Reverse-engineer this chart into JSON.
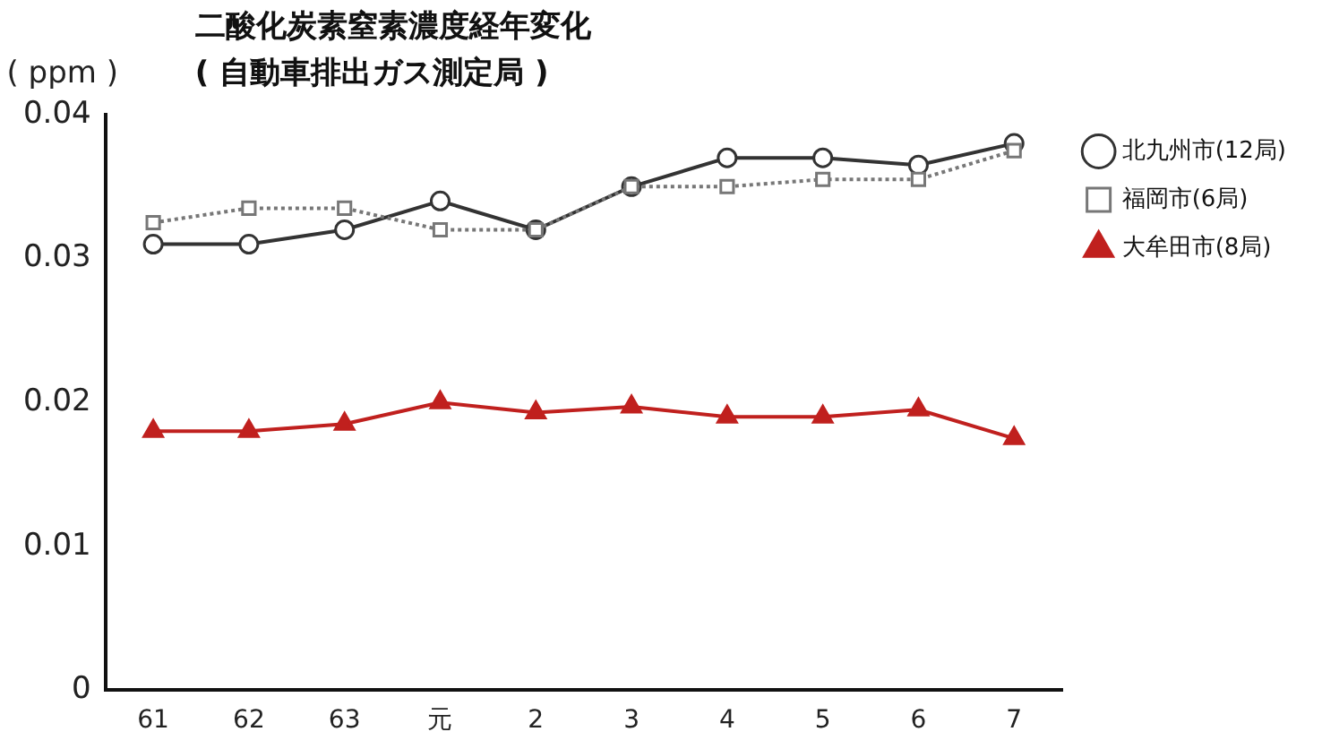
{
  "chart_data": {
    "type": "line",
    "title": "二酸化炭素窒素濃度経年変化",
    "subtitle": "( 自動車排出ガス測定局 )",
    "ylabel": "( ppm )",
    "categories": [
      "61",
      "62",
      "63",
      "元",
      "2",
      "3",
      "4",
      "5",
      "6",
      "7"
    ],
    "series": [
      {
        "name": "北九州市(12局)",
        "color": "#333333",
        "marker": "circle",
        "line_style": "solid",
        "values": [
          0.031,
          0.031,
          0.032,
          0.034,
          0.032,
          0.035,
          0.037,
          0.037,
          0.0365,
          0.038
        ]
      },
      {
        "name": "福岡市(6局)",
        "color": "#777777",
        "marker": "square",
        "line_style": "dotted",
        "values": [
          0.0325,
          0.0335,
          0.0335,
          0.032,
          0.032,
          0.035,
          0.035,
          0.0355,
          0.0355,
          0.0375
        ]
      },
      {
        "name": "大牟田市(8局)",
        "color": "#c0201e",
        "marker": "triangle",
        "line_style": "solid",
        "values": [
          0.018,
          0.018,
          0.0185,
          0.02,
          0.0193,
          0.0197,
          0.019,
          0.019,
          0.0195,
          0.0175
        ]
      }
    ],
    "ylim": [
      0,
      0.04
    ],
    "yticks": [
      0,
      0.01,
      0.02,
      0.03,
      0.04
    ],
    "grid": false,
    "legend": "top right"
  }
}
